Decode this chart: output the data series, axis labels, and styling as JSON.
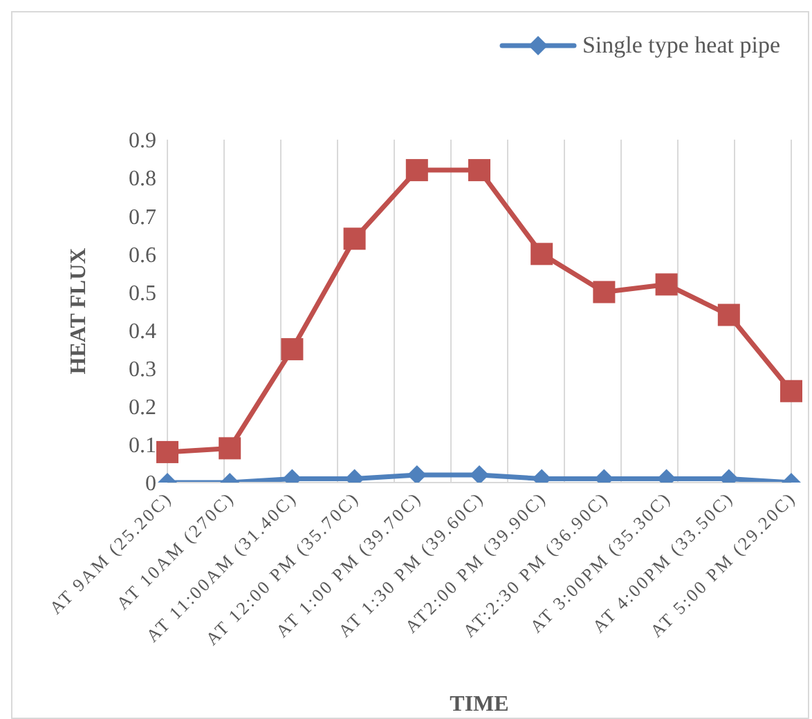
{
  "chart_data": {
    "type": "line",
    "xlabel": "TIME",
    "ylabel": "HEAT FLUX",
    "categories": [
      "AT 9AM (25.20C)",
      "AT 10AM (270C)",
      "AT 11:00AM (31.40C)",
      "AT 12:00 PM (35.70C)",
      "AT 1:00 PM (39.70C)",
      "AT 1:30 PM (39.60C)",
      "AT2:00 PM (39.90C)",
      "AT:2:30 PM (36.90C)",
      "AT 3:00PM (35.30C)",
      "AT 4:00PM (33.50C)",
      "AT 5:00 PM (29.20C)"
    ],
    "series": [
      {
        "name": "Single type heat pipe",
        "color": "#4f81bd",
        "marker": "diamond",
        "values": [
          0,
          0,
          0.01,
          0.01,
          0.02,
          0.02,
          0.01,
          0.01,
          0.01,
          0.01,
          0
        ]
      },
      {
        "color": "#c0504d",
        "marker": "square",
        "values": [
          0.08,
          0.09,
          0.35,
          0.64,
          0.82,
          0.82,
          0.6,
          0.5,
          0.52,
          0.44,
          0.24
        ]
      }
    ],
    "ylim": [
      0,
      0.9
    ],
    "yticks": [
      0,
      0.1,
      0.2,
      0.3,
      0.4,
      0.5,
      0.6,
      0.7,
      0.8,
      0.9
    ],
    "grid": "x",
    "legend": "top right",
    "line_style": "solid"
  }
}
